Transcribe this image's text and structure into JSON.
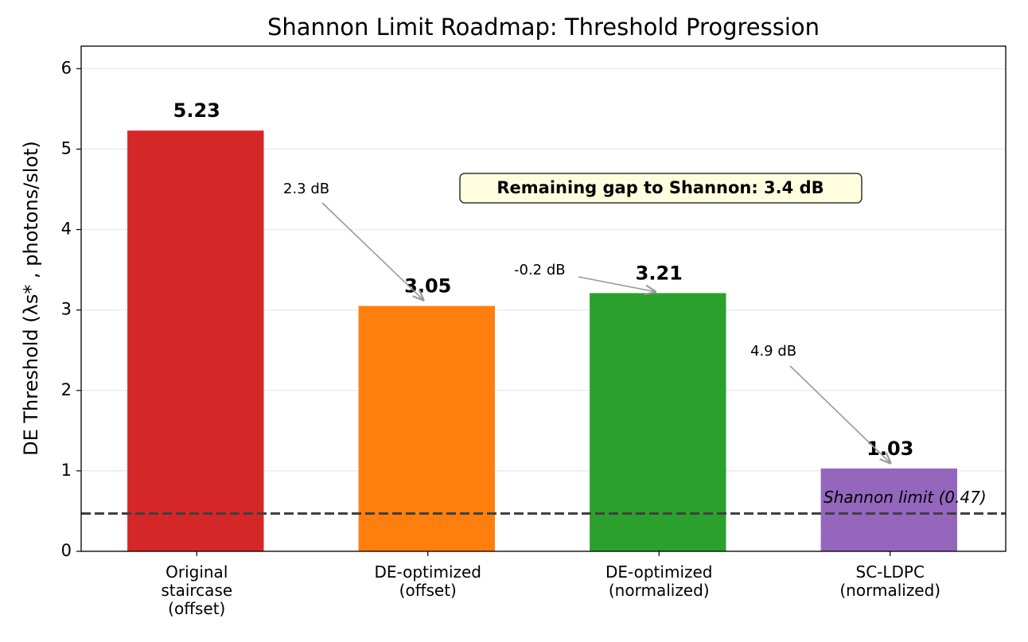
{
  "chart_data": {
    "type": "bar",
    "title": "Shannon Limit Roadmap: Threshold Progression",
    "y_label": "DE Threshold (λs* , photons/slot)",
    "categories": [
      "Original\nstaircase\n(offset)",
      "DE-optimized\n(offset)",
      "DE-optimized\n(normalized)",
      "SC-LDPC\n(normalized)"
    ],
    "values": [
      5.23,
      3.05,
      3.21,
      1.03
    ],
    "colors": [
      "#d62728",
      "#ff7f0e",
      "#2ca02c",
      "#9467bd"
    ],
    "ylim": [
      0,
      6.28
    ],
    "yticks": [
      0,
      1,
      2,
      3,
      4,
      5,
      6
    ],
    "grid": true,
    "reference_line": {
      "value": 0.47,
      "label": "Shannon limit (0.47)"
    },
    "annotations": [
      "2.3 dB",
      "-0.2 dB",
      "4.9 dB"
    ],
    "gap_box": "Remaining gap to Shannon: 3.4 dB"
  }
}
